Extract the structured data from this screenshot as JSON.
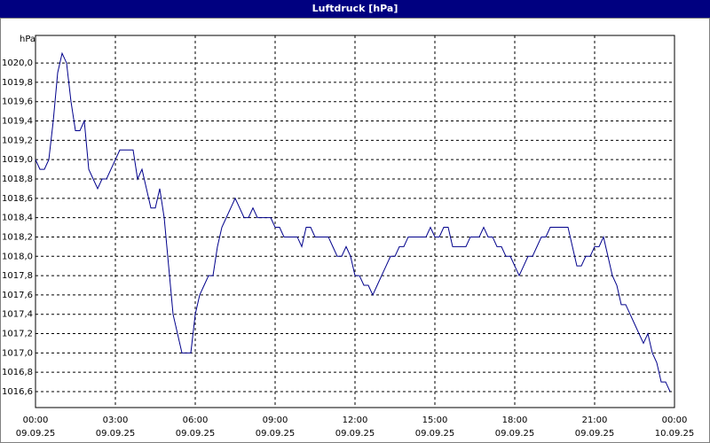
{
  "chart_data": {
    "type": "line",
    "title": "Luftdruck [hPa]",
    "y_unit": "hPa",
    "color": "#00008b",
    "grid": true,
    "xlim": [
      0,
      1440
    ],
    "xticks": [
      {
        "value": 0,
        "label": "00:00"
      },
      {
        "value": 180,
        "label": "03:00"
      },
      {
        "value": 360,
        "label": "06:00"
      },
      {
        "value": 540,
        "label": "09:00"
      },
      {
        "value": 720,
        "label": "12:00"
      },
      {
        "value": 900,
        "label": "15:00"
      },
      {
        "value": 1080,
        "label": "18:00"
      },
      {
        "value": 1260,
        "label": "21:00"
      },
      {
        "value": 1440,
        "label": "00:00"
      }
    ],
    "xtick_dates": [
      "09.09.25",
      "09.09.25",
      "09.09.25",
      "09.09.25",
      "09.09.25",
      "09.09.25",
      "09.09.25",
      "09.09.25",
      "10.09.25"
    ],
    "ylim": [
      1016.435,
      1020.285
    ],
    "yticks": [
      {
        "value": 1016.6,
        "label": "1016,6"
      },
      {
        "value": 1016.8,
        "label": "1016,8"
      },
      {
        "value": 1017.0,
        "label": "1017,0"
      },
      {
        "value": 1017.2,
        "label": "1017,2"
      },
      {
        "value": 1017.4,
        "label": "1017,4"
      },
      {
        "value": 1017.6,
        "label": "1017,6"
      },
      {
        "value": 1017.8,
        "label": "1017,8"
      },
      {
        "value": 1018.0,
        "label": "1018,0"
      },
      {
        "value": 1018.2,
        "label": "1018,2"
      },
      {
        "value": 1018.4,
        "label": "1018,4"
      },
      {
        "value": 1018.6,
        "label": "1018,6"
      },
      {
        "value": 1018.8,
        "label": "1018,8"
      },
      {
        "value": 1019.0,
        "label": "1019,0"
      },
      {
        "value": 1019.2,
        "label": "1019,2"
      },
      {
        "value": 1019.4,
        "label": "1019,4"
      },
      {
        "value": 1019.6,
        "label": "1019,6"
      },
      {
        "value": 1019.8,
        "label": "1019,8"
      },
      {
        "value": 1020.0,
        "label": "1020,0"
      }
    ],
    "x": [
      0,
      10,
      20,
      30,
      40,
      50,
      60,
      70,
      80,
      90,
      100,
      110,
      120,
      130,
      140,
      150,
      160,
      170,
      180,
      190,
      200,
      210,
      220,
      230,
      240,
      250,
      260,
      270,
      280,
      290,
      300,
      310,
      320,
      330,
      340,
      350,
      360,
      370,
      380,
      390,
      400,
      410,
      420,
      430,
      440,
      450,
      460,
      470,
      480,
      490,
      500,
      510,
      520,
      530,
      540,
      550,
      560,
      570,
      580,
      590,
      600,
      610,
      620,
      630,
      640,
      650,
      660,
      670,
      680,
      690,
      700,
      710,
      720,
      730,
      740,
      750,
      760,
      770,
      780,
      790,
      800,
      810,
      820,
      830,
      840,
      850,
      860,
      870,
      880,
      890,
      900,
      910,
      920,
      930,
      940,
      950,
      960,
      970,
      980,
      990,
      1000,
      1010,
      1020,
      1030,
      1040,
      1050,
      1060,
      1070,
      1080,
      1090,
      1100,
      1110,
      1120,
      1130,
      1140,
      1150,
      1160,
      1170,
      1180,
      1190,
      1200,
      1210,
      1220,
      1230,
      1240,
      1250,
      1260,
      1270,
      1280,
      1290,
      1300,
      1310,
      1320,
      1330,
      1340,
      1350,
      1360,
      1370,
      1380,
      1390,
      1400,
      1410,
      1420,
      1430
    ],
    "values": [
      1019.0,
      1018.9,
      1018.9,
      1019.0,
      1019.4,
      1019.9,
      1020.1,
      1020.0,
      1019.6,
      1019.3,
      1019.3,
      1019.4,
      1018.9,
      1018.8,
      1018.7,
      1018.8,
      1018.8,
      1018.9,
      1019.0,
      1019.1,
      1019.1,
      1019.1,
      1019.1,
      1018.8,
      1018.9,
      1018.7,
      1018.5,
      1018.5,
      1018.7,
      1018.4,
      1017.9,
      1017.4,
      1017.2,
      1017.0,
      1017.0,
      1017.0,
      1017.4,
      1017.6,
      1017.7,
      1017.8,
      1017.8,
      1018.1,
      1018.3,
      1018.4,
      1018.5,
      1018.6,
      1018.5,
      1018.4,
      1018.4,
      1018.5,
      1018.4,
      1018.4,
      1018.4,
      1018.4,
      1018.3,
      1018.3,
      1018.2,
      1018.2,
      1018.2,
      1018.2,
      1018.1,
      1018.3,
      1018.3,
      1018.2,
      1018.2,
      1018.2,
      1018.2,
      1018.1,
      1018.0,
      1018.0,
      1018.1,
      1018.0,
      1017.8,
      1017.8,
      1017.7,
      1017.7,
      1017.6,
      1017.7,
      1017.8,
      1017.9,
      1018.0,
      1018.0,
      1018.1,
      1018.1,
      1018.2,
      1018.2,
      1018.2,
      1018.2,
      1018.2,
      1018.3,
      1018.2,
      1018.2,
      1018.3,
      1018.3,
      1018.1,
      1018.1,
      1018.1,
      1018.1,
      1018.2,
      1018.2,
      1018.2,
      1018.3,
      1018.2,
      1018.2,
      1018.1,
      1018.1,
      1018.0,
      1018.0,
      1017.9,
      1017.8,
      1017.9,
      1018.0,
      1018.0,
      1018.1,
      1018.2,
      1018.2,
      1018.3,
      1018.3,
      1018.3,
      1018.3,
      1018.3,
      1018.1,
      1017.9,
      1017.9,
      1018.0,
      1018.0,
      1018.1,
      1018.1,
      1018.2,
      1018.0,
      1017.8,
      1017.7,
      1017.5,
      1017.5,
      1017.4,
      1017.3,
      1017.2,
      1017.1,
      1017.2,
      1017.0,
      1016.9,
      1016.7,
      1016.7,
      1016.6
    ]
  }
}
